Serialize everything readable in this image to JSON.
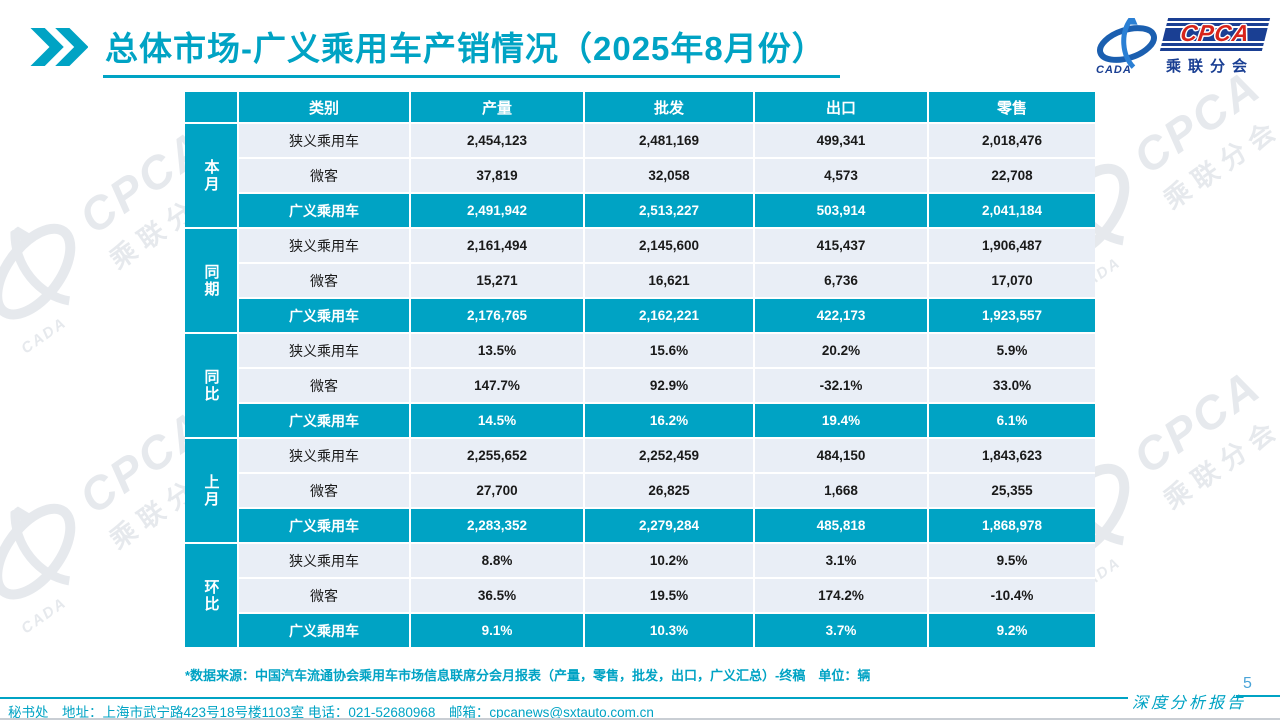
{
  "title": "总体市场-广义乘用车产销情况（2025年8月份）",
  "logo": {
    "cpca": "CPCA",
    "subtitle": "乘联分会",
    "emblem": "CADA"
  },
  "table": {
    "headers": [
      "类别",
      "产量",
      "批发",
      "出口",
      "零售"
    ],
    "groups": [
      {
        "label": "本月",
        "rows": [
          {
            "category": "狭义乘用车",
            "values": [
              "2,454,123",
              "2,481,169",
              "499,341",
              "2,018,476"
            ],
            "highlight": false
          },
          {
            "category": "微客",
            "values": [
              "37,819",
              "32,058",
              "4,573",
              "22,708"
            ],
            "highlight": false
          },
          {
            "category": "广义乘用车",
            "values": [
              "2,491,942",
              "2,513,227",
              "503,914",
              "2,041,184"
            ],
            "highlight": true
          }
        ]
      },
      {
        "label": "同期",
        "rows": [
          {
            "category": "狭义乘用车",
            "values": [
              "2,161,494",
              "2,145,600",
              "415,437",
              "1,906,487"
            ],
            "highlight": false
          },
          {
            "category": "微客",
            "values": [
              "15,271",
              "16,621",
              "6,736",
              "17,070"
            ],
            "highlight": false
          },
          {
            "category": "广义乘用车",
            "values": [
              "2,176,765",
              "2,162,221",
              "422,173",
              "1,923,557"
            ],
            "highlight": true
          }
        ]
      },
      {
        "label": "同比",
        "rows": [
          {
            "category": "狭义乘用车",
            "values": [
              "13.5%",
              "15.6%",
              "20.2%",
              "5.9%"
            ],
            "highlight": false
          },
          {
            "category": "微客",
            "values": [
              "147.7%",
              "92.9%",
              "-32.1%",
              "33.0%"
            ],
            "highlight": false
          },
          {
            "category": "广义乘用车",
            "values": [
              "14.5%",
              "16.2%",
              "19.4%",
              "6.1%"
            ],
            "highlight": true
          }
        ]
      },
      {
        "label": "上月",
        "rows": [
          {
            "category": "狭义乘用车",
            "values": [
              "2,255,652",
              "2,252,459",
              "484,150",
              "1,843,623"
            ],
            "highlight": false
          },
          {
            "category": "微客",
            "values": [
              "27,700",
              "26,825",
              "1,668",
              "25,355"
            ],
            "highlight": false
          },
          {
            "category": "广义乘用车",
            "values": [
              "2,283,352",
              "2,279,284",
              "485,818",
              "1,868,978"
            ],
            "highlight": true
          }
        ]
      },
      {
        "label": "环比",
        "rows": [
          {
            "category": "狭义乘用车",
            "values": [
              "8.8%",
              "10.2%",
              "3.1%",
              "9.5%"
            ],
            "highlight": false
          },
          {
            "category": "微客",
            "values": [
              "36.5%",
              "19.5%",
              "174.2%",
              "-10.4%"
            ],
            "highlight": false
          },
          {
            "category": "广义乘用车",
            "values": [
              "9.1%",
              "10.3%",
              "3.7%",
              "9.2%"
            ],
            "highlight": true
          }
        ]
      }
    ]
  },
  "chart_data": {
    "type": "table",
    "title": "总体市场-广义乘用车产销情况（2025年8月份）",
    "columns": [
      "类别",
      "产量",
      "批发",
      "出口",
      "零售"
    ],
    "row_groups": [
      "本月",
      "同期",
      "同比",
      "上月",
      "环比"
    ],
    "unit": "辆"
  },
  "footnote": "*数据来源：中国汽车流通协会乘用车市场信息联席分会月报表（产量，零售，批发，出口，广义汇总）-终稿　单位：辆",
  "footer": {
    "secretariat_line": "秘书处　地址：上海市武宁路423号18号楼1103室 电话：021-52680968　邮箱：cpcanews@sxtauto.com.cn",
    "report_type": "深度分析报告",
    "page_number": "5"
  },
  "colors": {
    "accent": "#00a3c4",
    "navy": "#1a3f93",
    "red": "#d7241b",
    "row_light": "#e9eef6",
    "watermark": "#e6e9ed",
    "page_number_blue": "#4aa4d8"
  }
}
